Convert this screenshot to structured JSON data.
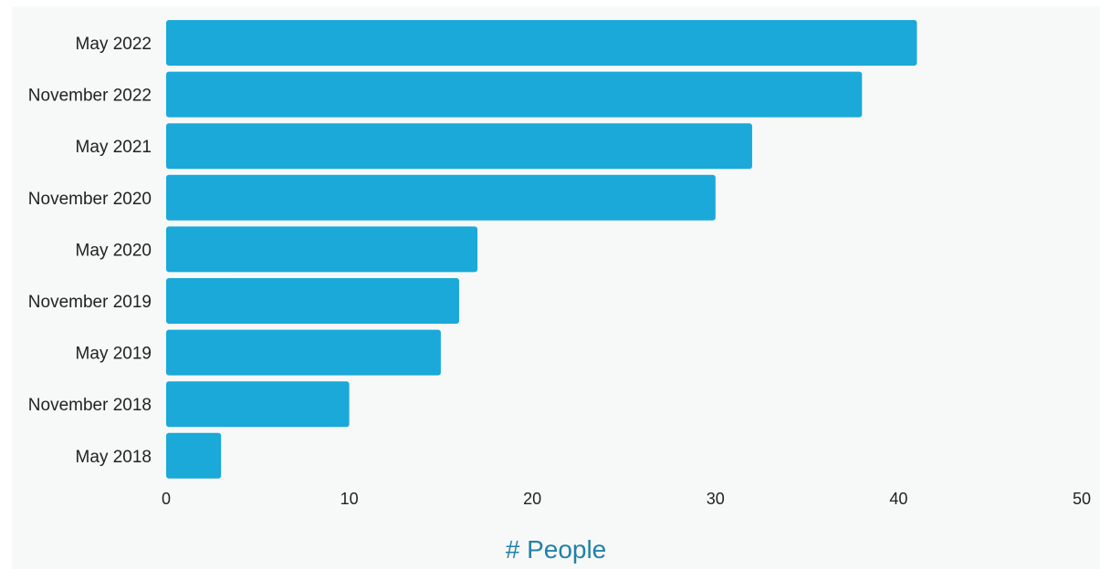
{
  "chart_data": {
    "type": "bar",
    "orientation": "horizontal",
    "categories": [
      "May 2022",
      "November 2022",
      "May 2021",
      "November 2020",
      "May 2020",
      "November 2019",
      "May 2019",
      "November 2018",
      "May 2018"
    ],
    "values": [
      41,
      38,
      32,
      30,
      17,
      16,
      15,
      10,
      3
    ],
    "xlabel": "# People",
    "ylabel": "",
    "xlim": [
      0,
      50
    ],
    "xticks": [
      "0",
      "10",
      "20",
      "30",
      "40",
      "50"
    ],
    "grid": false,
    "colors": {
      "bar": "#1aa9d8",
      "background": "#f7f9f9",
      "axis_title": "#2381a6"
    }
  }
}
